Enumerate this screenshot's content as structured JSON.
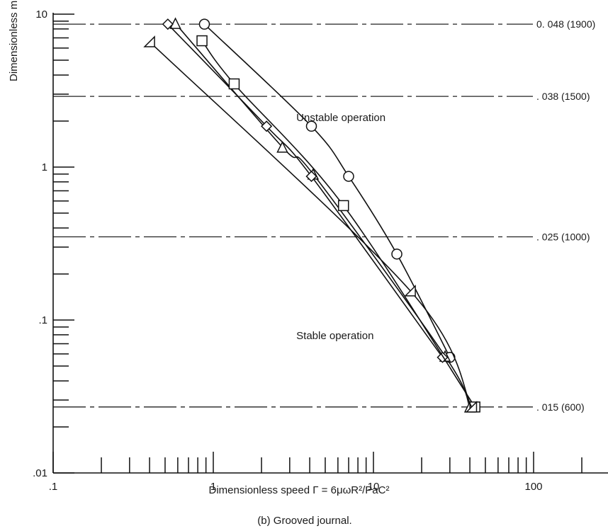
{
  "chart_data": {
    "type": "line",
    "scale": {
      "x": "log",
      "y": "log"
    },
    "xlim": [
      0.1,
      300
    ],
    "ylim": [
      0.01,
      10
    ],
    "xlabel": "Dimensionless speed  Γ = 6μωR²/PaC²",
    "ylabel": "Dimensionless mass",
    "caption": "(b) Grooved journal.",
    "x_tick_labels": [
      {
        "value": 0.1,
        "label": ".1"
      },
      {
        "value": 1,
        "label": "1"
      },
      {
        "value": 10,
        "label": "10"
      },
      {
        "value": 100,
        "label": "100"
      }
    ],
    "y_tick_labels": [
      {
        "value": 0.01,
        "label": ".01"
      },
      {
        "value": 0.1,
        "label": ".1"
      },
      {
        "value": 1,
        "label": "1"
      },
      {
        "value": 10,
        "label": "10"
      }
    ],
    "reference_lines": [
      {
        "y": 8.6,
        "label": "0. 048 (1900)"
      },
      {
        "y": 2.9,
        "label": ". 038 (1500)"
      },
      {
        "y": 0.35,
        "label": ". 025 (1000)"
      },
      {
        "y": 0.027,
        "label": ". 015 (600)"
      }
    ],
    "annotations": [
      {
        "text": "Unstable operation",
        "x": 3.3,
        "y": 2.0
      },
      {
        "text": "Stable operation",
        "x": 3.3,
        "y": 0.075
      }
    ],
    "series": [
      {
        "marker": "circle",
        "points": [
          [
            0.88,
            8.6
          ],
          [
            4.1,
            1.85
          ],
          [
            7.0,
            0.87
          ],
          [
            14.0,
            0.27
          ],
          [
            30.0,
            0.057
          ]
        ]
      },
      {
        "marker": "triangle",
        "points": [
          [
            0.58,
            8.7
          ],
          [
            2.7,
            1.35
          ],
          [
            4.2,
            0.9
          ],
          [
            28.0,
            0.058
          ],
          [
            40.0,
            0.027
          ]
        ]
      },
      {
        "marker": "diamond",
        "points": [
          [
            0.52,
            8.6
          ],
          [
            2.15,
            1.85
          ],
          [
            4.1,
            0.87
          ],
          [
            27.0,
            0.057
          ]
        ]
      },
      {
        "marker": "square",
        "points": [
          [
            0.85,
            6.7
          ],
          [
            1.35,
            3.5
          ],
          [
            6.5,
            0.56
          ],
          [
            43.0,
            0.027
          ]
        ]
      },
      {
        "marker": "half-triangle",
        "points": [
          [
            0.4,
            6.6
          ],
          [
            17.0,
            0.155
          ],
          [
            41.0,
            0.027
          ]
        ]
      }
    ]
  }
}
